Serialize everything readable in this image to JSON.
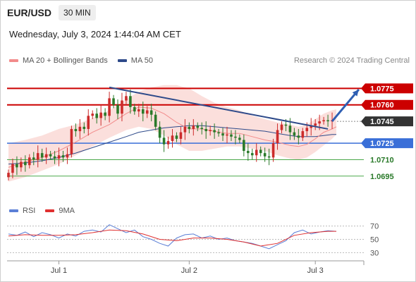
{
  "header": {
    "symbol": "EUR/USD",
    "timeframe": "30 MIN"
  },
  "datetime": "Wednesday, July 3, 2024 1:44:04 AM CET",
  "legend": [
    {
      "label": "MA 20 + Bollinger Bands",
      "color": "#f28b8b"
    },
    {
      "label": "MA 50",
      "color": "#2e4a8a"
    }
  ],
  "credit": "Research © 2024 Trading Central",
  "rsi_legend": [
    {
      "label": "RSI",
      "color": "#5b7fd6"
    },
    {
      "label": "9MA",
      "color": "#e03030"
    }
  ],
  "colors": {
    "resistance": "#cc0000",
    "support_pivot": "#3a6fd8",
    "support": "#4aa84a",
    "current": "#333333",
    "trendline": "#2e4a8a",
    "candle_up": "#cc2b2b",
    "candle_down": "#2a7a2a",
    "band_fill": "#f9d4d0",
    "ma20": "#f28b8b",
    "ma50": "#2e4a8a",
    "rsi": "#5b7fd6",
    "rsi_ma": "#e03030",
    "arrow": "#2f5fb3"
  },
  "chart_data": [
    {
      "type": "candlestick",
      "instrument": "EUR/USD",
      "timeframe": "30 MIN",
      "x_ticks": [
        "Jul 1",
        "Jul 2",
        "Jul 3"
      ],
      "x_range": [
        0,
        96
      ],
      "x_tick_index": [
        12,
        43,
        73
      ],
      "ylim": [
        1.0682,
        1.0792
      ],
      "levels": [
        {
          "value": 1.0775,
          "label": "1.0775",
          "kind": "resistance"
        },
        {
          "value": 1.076,
          "label": "1.0760",
          "kind": "resistance"
        },
        {
          "value": 1.0745,
          "label": "1.0745",
          "kind": "current"
        },
        {
          "value": 1.0725,
          "label": "1.0725",
          "kind": "pivot"
        },
        {
          "value": 1.071,
          "label": "1.0710",
          "kind": "support"
        },
        {
          "value": 1.0695,
          "label": "1.0695",
          "kind": "support"
        }
      ],
      "trendline": {
        "from": [
          24,
          1.0776
        ],
        "to": [
          76,
          1.0738
        ]
      },
      "projection_arrow": {
        "from": [
          77,
          1.0745
        ],
        "to": [
          82,
          1.0774
        ]
      },
      "close": [
        1.0698,
        1.0706,
        1.0703,
        1.0708,
        1.0705,
        1.0712,
        1.071,
        1.0716,
        1.0712,
        1.0715,
        1.0713,
        1.0711,
        1.0714,
        1.0712,
        1.0715,
        1.0738,
        1.0736,
        1.074,
        1.0738,
        1.075,
        1.0752,
        1.0748,
        1.0753,
        1.075,
        1.0766,
        1.076,
        1.0752,
        1.0764,
        1.0768,
        1.0758,
        1.0754,
        1.0756,
        1.0752,
        1.0755,
        1.0751,
        1.074,
        1.073,
        1.0724,
        1.0727,
        1.0732,
        1.0729,
        1.0735,
        1.074,
        1.0738,
        1.0741,
        1.0739,
        1.0738,
        1.0736,
        1.0737,
        1.0735,
        1.0734,
        1.0732,
        1.0733,
        1.0731,
        1.073,
        1.0728,
        1.0718,
        1.0716,
        1.0714,
        1.0719,
        1.0716,
        1.0713,
        1.0712,
        1.0725,
        1.0737,
        1.0742,
        1.0741,
        1.0735,
        1.0732,
        1.073,
        1.0736,
        1.0739,
        1.0741,
        1.0743,
        1.0745,
        1.0746,
        1.0745,
        1.0746
      ],
      "bollinger": {
        "upper": [
          1.0725,
          1.0728,
          1.0732,
          1.0738,
          1.0742,
          1.0748,
          1.0755,
          1.0765,
          1.0772,
          1.0776,
          1.0778,
          1.0778,
          1.0775,
          1.0768,
          1.0762,
          1.0758,
          1.0755,
          1.075,
          1.0747,
          1.0744,
          1.0742,
          1.074,
          1.0742,
          1.0747,
          1.0752,
          1.0755,
          1.0756
        ],
        "lower": [
          1.069,
          1.0694,
          1.07,
          1.0706,
          1.0714,
          1.0722,
          1.073,
          1.0737,
          1.074,
          1.0738,
          1.0732,
          1.0724,
          1.0718,
          1.0718,
          1.072,
          1.0722,
          1.0722,
          1.072,
          1.0718,
          1.0714,
          1.0711,
          1.071,
          1.0712,
          1.0717,
          1.0723,
          1.0729,
          1.0733
        ],
        "x": [
          0,
          4,
          8,
          12,
          16,
          20,
          24,
          28,
          31,
          34,
          37,
          40,
          43,
          46,
          49,
          52,
          55,
          58,
          61,
          64,
          67,
          69,
          71,
          73,
          75,
          77,
          78
        ]
      },
      "ma20": {
        "x": [
          0,
          4,
          8,
          12,
          16,
          20,
          24,
          28,
          31,
          34,
          37,
          40,
          43,
          46,
          49,
          52,
          55,
          58,
          61,
          64,
          67,
          69,
          71,
          73,
          75,
          77,
          78
        ],
        "values": [
          1.0703,
          1.0708,
          1.0712,
          1.0718,
          1.0726,
          1.0735,
          1.0742,
          1.0752,
          1.0758,
          1.0757,
          1.0752,
          1.0744,
          1.0738,
          1.0738,
          1.0736,
          1.0734,
          1.0734,
          1.0731,
          1.0728,
          1.0726,
          1.0723,
          1.0722,
          1.0724,
          1.0729,
          1.0735,
          1.0738,
          1.074
        ]
      },
      "ma50": {
        "x": [
          0,
          4,
          8,
          12,
          16,
          20,
          24,
          28,
          31,
          34,
          37,
          40,
          43,
          46,
          49,
          52,
          55,
          58,
          61,
          64,
          67,
          69,
          71,
          73,
          75,
          77,
          78
        ],
        "values": [
          1.0706,
          1.0707,
          1.0709,
          1.0712,
          1.0716,
          1.0721,
          1.0726,
          1.0731,
          1.0735,
          1.0737,
          1.0739,
          1.074,
          1.0741,
          1.0741,
          1.074,
          1.0739,
          1.0738,
          1.0737,
          1.0736,
          1.0734,
          1.0732,
          1.0731,
          1.0731,
          1.0731,
          1.0732,
          1.0733,
          1.0733
        ]
      }
    },
    {
      "type": "line",
      "name": "RSI",
      "ylim": [
        22,
        78
      ],
      "y_ticks": [
        70,
        50,
        30
      ],
      "x_range": [
        0,
        96
      ],
      "series": [
        {
          "name": "RSI",
          "x": [
            0,
            2,
            4,
            6,
            8,
            10,
            12,
            14,
            16,
            18,
            20,
            22,
            24,
            26,
            28,
            30,
            32,
            34,
            36,
            38,
            40,
            42,
            44,
            46,
            48,
            50,
            52,
            54,
            56,
            58,
            60,
            62,
            64,
            66,
            68,
            70,
            72,
            74,
            76,
            78
          ],
          "values": [
            58,
            56,
            61,
            54,
            60,
            57,
            52,
            58,
            55,
            62,
            64,
            61,
            72,
            66,
            60,
            64,
            54,
            50,
            44,
            40,
            52,
            57,
            58,
            52,
            55,
            50,
            52,
            48,
            46,
            44,
            40,
            36,
            42,
            48,
            60,
            64,
            58,
            61,
            63,
            62
          ]
        },
        {
          "name": "9MA",
          "x": [
            0,
            4,
            8,
            12,
            16,
            20,
            24,
            28,
            32,
            36,
            40,
            44,
            48,
            52,
            56,
            60,
            64,
            68,
            72,
            76,
            78
          ],
          "values": [
            55,
            57,
            56,
            56,
            57,
            60,
            64,
            63,
            58,
            50,
            48,
            52,
            52,
            50,
            46,
            40,
            44,
            56,
            60,
            62,
            62
          ]
        }
      ]
    }
  ]
}
